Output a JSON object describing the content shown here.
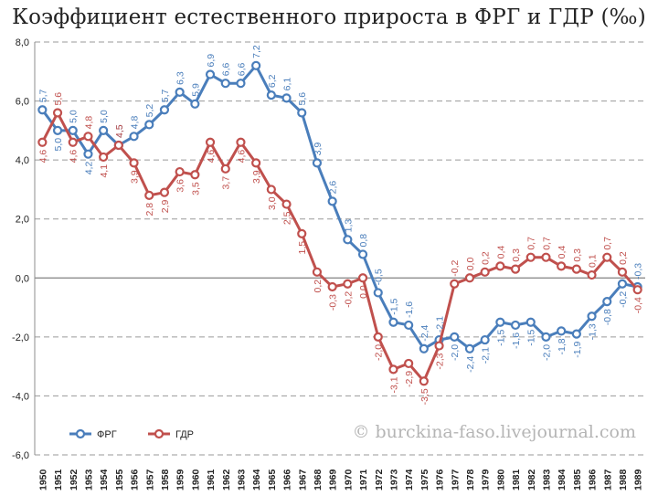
{
  "chart_data": {
    "type": "line",
    "title": "Коэффициент естественного прироста в ФРГ и ГДР (‰)",
    "xlabel": "",
    "ylabel": "",
    "ylim": [
      -6,
      8
    ],
    "yticks": [
      "8,0",
      "6,0",
      "4,0",
      "2,0",
      "0,0",
      "-2,0",
      "-4,0",
      "-6,0"
    ],
    "ytick_values": [
      8,
      6,
      4,
      2,
      0,
      -2,
      -4,
      -6
    ],
    "grid": true,
    "legend_position": "bottom-left",
    "categories": [
      "1950",
      "1951",
      "1952",
      "1953",
      "1954",
      "1955",
      "1956",
      "1957",
      "1958",
      "1959",
      "1960",
      "1961",
      "1962",
      "1963",
      "1964",
      "1965",
      "1966",
      "1967",
      "1968",
      "1969",
      "1970",
      "1971",
      "1972",
      "1973",
      "1974",
      "1975",
      "1976",
      "1977",
      "1978",
      "1979",
      "1980",
      "1981",
      "1982",
      "1983",
      "1984",
      "1985",
      "1986",
      "1987",
      "1988",
      "1989"
    ],
    "series": [
      {
        "name": "ФРГ",
        "color": "#4a7ebb",
        "values": [
          5.7,
          5.0,
          5.0,
          4.2,
          5.0,
          4.5,
          4.8,
          5.2,
          5.7,
          6.3,
          5.9,
          6.9,
          6.6,
          6.6,
          7.2,
          6.2,
          6.1,
          5.6,
          3.9,
          2.6,
          1.3,
          0.8,
          -0.5,
          -1.5,
          -1.6,
          -2.4,
          -2.1,
          -2.0,
          -2.4,
          -2.1,
          -1.5,
          -1.6,
          -1.5,
          -2.0,
          -1.8,
          -1.9,
          -1.3,
          -0.8,
          -0.2,
          -0.3
        ],
        "labels": [
          "5,7",
          "5,0",
          "5,0",
          "4,2",
          "5,0",
          "4,5",
          "4,8",
          "5,2",
          "5,7",
          "6,3",
          "5,9",
          "6,9",
          "6,6",
          "6,6",
          "7,2",
          "6,2",
          "6,1",
          "5,6",
          "3,9",
          "2,6",
          "1,3",
          "0,8",
          "-0,5",
          "-1,5",
          "-1,6",
          "-2,4",
          "-2,1",
          "-2,0",
          "-2,4",
          "-2,1",
          "-1,5",
          "-1,6",
          "-1,5",
          "-2,0",
          "-1,8",
          "-1,9",
          "-1,3",
          "-0,8",
          "-0,2",
          "-0,3"
        ]
      },
      {
        "name": "ГДР",
        "color": "#c0504d",
        "values": [
          4.6,
          5.6,
          4.6,
          4.8,
          4.1,
          4.5,
          3.9,
          2.8,
          2.9,
          3.6,
          3.5,
          4.6,
          3.7,
          4.6,
          3.9,
          3.0,
          2.5,
          1.5,
          0.2,
          -0.3,
          -0.2,
          0.0,
          -2.0,
          -3.1,
          -2.9,
          -3.5,
          -2.3,
          -0.2,
          0.0,
          0.2,
          0.4,
          0.3,
          0.7,
          0.7,
          0.4,
          0.3,
          0.1,
          0.7,
          0.2,
          -0.4
        ],
        "labels": [
          "4,6",
          "5,6",
          "4,6",
          "4,8",
          "4,1",
          "4,5",
          "3,9",
          "2,8",
          "2,9",
          "3,6",
          "3,5",
          "4,6",
          "3,7",
          "4,6",
          "3,9",
          "3,0",
          "2,5",
          "1,5",
          "0,2",
          "-0,3",
          "-0,2",
          "0,0",
          "-2,0",
          "-3,1",
          "-2,9",
          "-3,5",
          "-2,3",
          "-0,2",
          "0,0",
          "0,2",
          "0,4",
          "0,3",
          "0,7",
          "0,7",
          "0,4",
          "0,3",
          "0,1",
          "0,7",
          "0,2",
          "-0,4"
        ]
      }
    ],
    "watermark": "© burckina-faso.livejournal.com"
  }
}
